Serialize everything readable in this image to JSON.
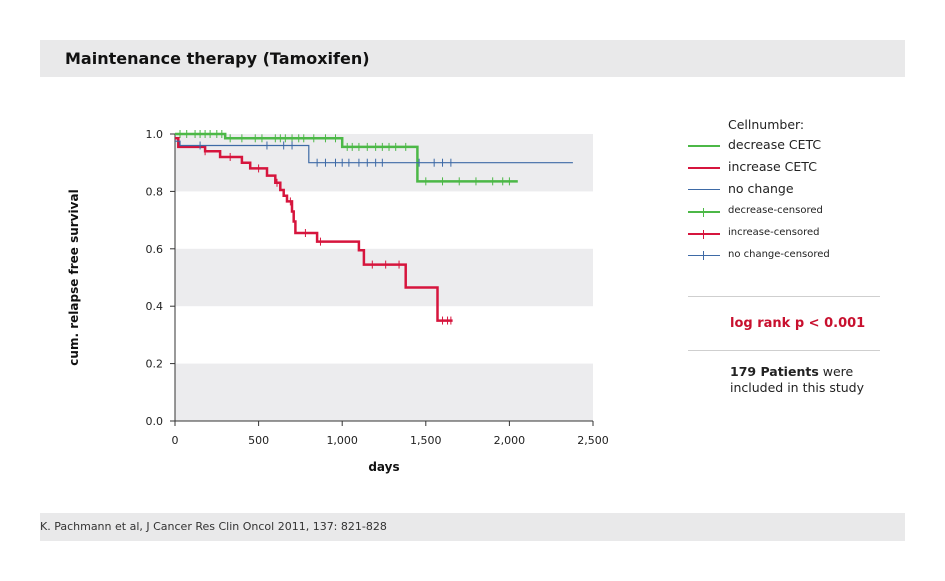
{
  "header": {
    "title": "Maintenance therapy (Tamoxifen)"
  },
  "footer": {
    "citation": "K. Pachmann et al, J Cancer Res Clin Oncol 2011, 137: 821-828"
  },
  "legend": {
    "title": "Cellnumber:",
    "items": [
      {
        "label": "decrease CETC",
        "color": "#4cb847",
        "kind": "line-thick"
      },
      {
        "label": "increase CETC",
        "color": "#d6153d",
        "kind": "line-thick"
      },
      {
        "label": "no change",
        "color": "#3e6aa6",
        "kind": "line-thin"
      },
      {
        "label": "decrease-censored",
        "color": "#4cb847",
        "kind": "censor-thick"
      },
      {
        "label": "increase-censored",
        "color": "#d6153d",
        "kind": "censor-thick"
      },
      {
        "label": "no change-censored",
        "color": "#3e6aa6",
        "kind": "censor-thin"
      }
    ]
  },
  "stats": {
    "log_rank": "log rank p < 0.001",
    "patients_bold": "179 Patients",
    "patients_rest": " were included in this study"
  },
  "chart_data": {
    "type": "line",
    "subtype": "kaplan-meier-step",
    "xlabel": "days",
    "ylabel": "cum. relapse free survival",
    "xlim": [
      0,
      2500
    ],
    "ylim": [
      0,
      1.0
    ],
    "x_ticks": [
      0,
      500,
      1000,
      1500,
      2000,
      2500
    ],
    "x_tick_labels": [
      "0",
      "500",
      "1,000",
      "1,500",
      "2,000",
      "2,500"
    ],
    "y_ticks": [
      0,
      0.2,
      0.4,
      0.6,
      0.8,
      1.0
    ],
    "y_tick_labels": [
      "0.0",
      "0.2",
      "0.4",
      "0.6",
      "0.8",
      "1.0"
    ],
    "grid": "alternating horizontal bands",
    "legend_position": "right",
    "series": [
      {
        "name": "decrease CETC",
        "color": "#4cb847",
        "width": 2.5,
        "steps": [
          [
            0,
            1.0
          ],
          [
            300,
            1.0
          ],
          [
            300,
            0.985
          ],
          [
            1000,
            0.985
          ],
          [
            1000,
            0.955
          ],
          [
            1450,
            0.955
          ],
          [
            1450,
            0.835
          ],
          [
            2050,
            0.835
          ]
        ],
        "censored": [
          [
            30,
            1.0
          ],
          [
            70,
            1.0
          ],
          [
            120,
            1.0
          ],
          [
            150,
            1.0
          ],
          [
            180,
            1.0
          ],
          [
            210,
            1.0
          ],
          [
            250,
            1.0
          ],
          [
            280,
            1.0
          ],
          [
            330,
            0.985
          ],
          [
            400,
            0.985
          ],
          [
            480,
            0.985
          ],
          [
            520,
            0.985
          ],
          [
            600,
            0.985
          ],
          [
            630,
            0.985
          ],
          [
            660,
            0.985
          ],
          [
            700,
            0.985
          ],
          [
            740,
            0.985
          ],
          [
            770,
            0.985
          ],
          [
            830,
            0.985
          ],
          [
            900,
            0.985
          ],
          [
            960,
            0.985
          ],
          [
            1030,
            0.955
          ],
          [
            1060,
            0.955
          ],
          [
            1100,
            0.955
          ],
          [
            1150,
            0.955
          ],
          [
            1200,
            0.955
          ],
          [
            1240,
            0.955
          ],
          [
            1280,
            0.955
          ],
          [
            1320,
            0.955
          ],
          [
            1380,
            0.955
          ],
          [
            1500,
            0.835
          ],
          [
            1600,
            0.835
          ],
          [
            1700,
            0.835
          ],
          [
            1800,
            0.835
          ],
          [
            1900,
            0.835
          ],
          [
            1960,
            0.835
          ],
          [
            2000,
            0.835
          ]
        ]
      },
      {
        "name": "increase CETC",
        "color": "#d6153d",
        "width": 2.5,
        "steps": [
          [
            0,
            0.985
          ],
          [
            20,
            0.985
          ],
          [
            20,
            0.955
          ],
          [
            180,
            0.955
          ],
          [
            180,
            0.94
          ],
          [
            270,
            0.94
          ],
          [
            270,
            0.92
          ],
          [
            400,
            0.92
          ],
          [
            400,
            0.9
          ],
          [
            450,
            0.9
          ],
          [
            450,
            0.88
          ],
          [
            550,
            0.88
          ],
          [
            550,
            0.855
          ],
          [
            600,
            0.855
          ],
          [
            600,
            0.83
          ],
          [
            630,
            0.83
          ],
          [
            630,
            0.805
          ],
          [
            650,
            0.805
          ],
          [
            650,
            0.785
          ],
          [
            670,
            0.785
          ],
          [
            670,
            0.765
          ],
          [
            700,
            0.765
          ],
          [
            700,
            0.73
          ],
          [
            710,
            0.73
          ],
          [
            710,
            0.695
          ],
          [
            720,
            0.695
          ],
          [
            720,
            0.655
          ],
          [
            850,
            0.655
          ],
          [
            850,
            0.625
          ],
          [
            1100,
            0.625
          ],
          [
            1100,
            0.595
          ],
          [
            1130,
            0.595
          ],
          [
            1130,
            0.545
          ],
          [
            1380,
            0.545
          ],
          [
            1380,
            0.465
          ],
          [
            1570,
            0.465
          ],
          [
            1570,
            0.35
          ],
          [
            1660,
            0.35
          ]
        ],
        "censored": [
          [
            180,
            0.94
          ],
          [
            330,
            0.92
          ],
          [
            500,
            0.88
          ],
          [
            610,
            0.83
          ],
          [
            690,
            0.765
          ],
          [
            780,
            0.655
          ],
          [
            870,
            0.625
          ],
          [
            1180,
            0.545
          ],
          [
            1260,
            0.545
          ],
          [
            1340,
            0.545
          ],
          [
            1600,
            0.35
          ],
          [
            1630,
            0.35
          ],
          [
            1650,
            0.35
          ]
        ]
      },
      {
        "name": "no change",
        "color": "#3e6aa6",
        "width": 1.2,
        "steps": [
          [
            0,
            0.975
          ],
          [
            30,
            0.975
          ],
          [
            30,
            0.96
          ],
          [
            800,
            0.96
          ],
          [
            800,
            0.9
          ],
          [
            2380,
            0.9
          ]
        ],
        "censored": [
          [
            150,
            0.96
          ],
          [
            550,
            0.96
          ],
          [
            650,
            0.96
          ],
          [
            700,
            0.96
          ],
          [
            850,
            0.9
          ],
          [
            900,
            0.9
          ],
          [
            960,
            0.9
          ],
          [
            1000,
            0.9
          ],
          [
            1040,
            0.9
          ],
          [
            1100,
            0.9
          ],
          [
            1150,
            0.9
          ],
          [
            1200,
            0.9
          ],
          [
            1240,
            0.9
          ],
          [
            1460,
            0.9
          ],
          [
            1550,
            0.9
          ],
          [
            1600,
            0.9
          ],
          [
            1650,
            0.9
          ]
        ]
      }
    ]
  }
}
